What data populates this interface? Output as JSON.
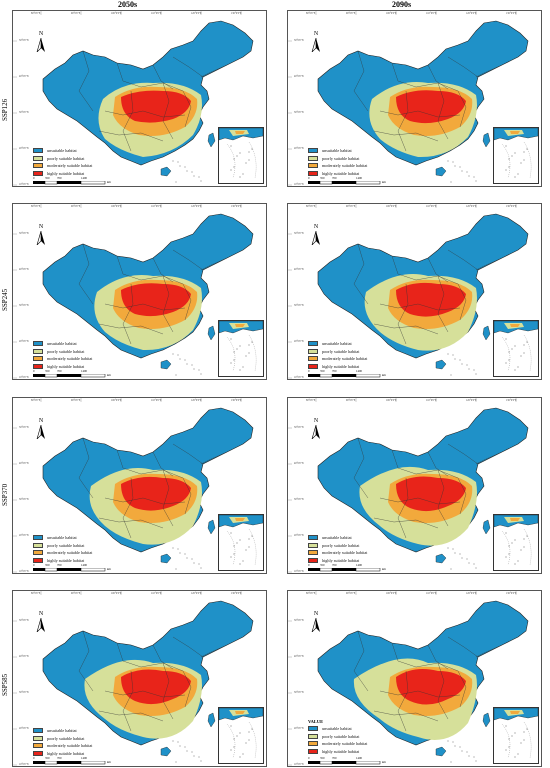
{
  "columns": [
    {
      "label": "2050s"
    },
    {
      "label": "2090s"
    }
  ],
  "rows": [
    {
      "label": "SSP126"
    },
    {
      "label": "SSP245"
    },
    {
      "label": "SSP370"
    },
    {
      "label": "SSP585"
    }
  ],
  "legend": {
    "items": [
      {
        "label": "unsuitable habitat",
        "color": "#1f91c8"
      },
      {
        "label": "poorly suitable habitat",
        "color": "#d6e09a"
      },
      {
        "label": "moderately suitable habitat",
        "color": "#f2a93c"
      },
      {
        "label": "highly suitable habitat",
        "color": "#e8241a"
      }
    ],
    "title_last_panel": "VALUE"
  },
  "scale": {
    "ticks": [
      "0",
      "350",
      "700",
      "1400"
    ],
    "unit": "km"
  },
  "north_label": "N",
  "top_ticks": [
    "80°0'0\"E",
    "90°0'0\"E",
    "100°0'0\"E",
    "110°0'0\"E",
    "120°0'0\"E",
    "130°0'0\"E"
  ],
  "left_ticks": [
    "50°0'0\"N",
    "40°0'0\"N",
    "30°0'0\"N",
    "20°0'0\"N",
    "10°0'0\"N"
  ]
}
